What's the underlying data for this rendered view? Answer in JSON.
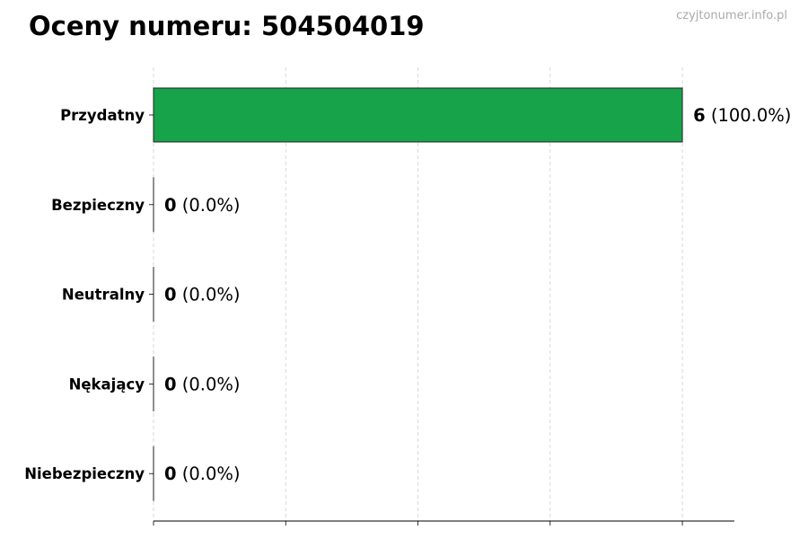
{
  "title": "Oceny numeru: 504504019",
  "watermark": "czyjtonumer.info.pl",
  "chart_data": {
    "type": "bar",
    "orientation": "horizontal",
    "title": "Oceny numeru: 504504019",
    "categories": [
      "Przydatny",
      "Bezpieczny",
      "Neutralny",
      "Nękający",
      "Niebezpieczny"
    ],
    "values": [
      6,
      0,
      0,
      0,
      0
    ],
    "data_labels": [
      {
        "count": "6",
        "pct": "(100.0%)"
      },
      {
        "count": "0",
        "pct": "(0.0%)"
      },
      {
        "count": "0",
        "pct": "(0.0%)"
      },
      {
        "count": "0",
        "pct": "(0.0%)"
      },
      {
        "count": "0",
        "pct": "(0.0%)"
      }
    ],
    "colors": [
      "#17a34a",
      "#17a34a",
      "#17a34a",
      "#17a34a",
      "#17a34a"
    ],
    "xlim": [
      0,
      6.59
    ],
    "xticks": [
      0,
      1.5,
      3,
      4.5,
      6
    ],
    "grid": true,
    "xlabel": "",
    "ylabel": ""
  }
}
